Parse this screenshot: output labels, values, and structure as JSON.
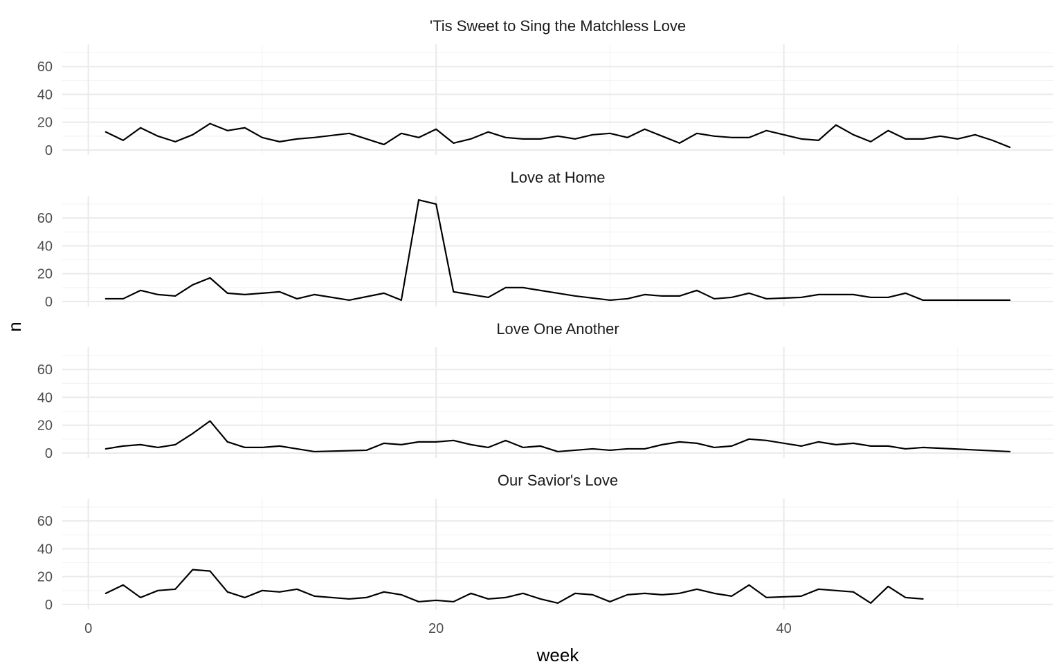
{
  "chart_data": {
    "type": "line",
    "facet": "rows",
    "xlabel": "week",
    "ylabel": "n",
    "xlim": [
      -1.5,
      55.5
    ],
    "ylim": [
      -3.5,
      76
    ],
    "x_ticks": [
      0,
      20,
      40
    ],
    "x_tick_labels": [
      "0",
      "20",
      "40"
    ],
    "y_ticks": [
      0,
      20,
      40,
      60
    ],
    "y_tick_labels": [
      "0",
      "20",
      "40",
      "60"
    ],
    "grid": true,
    "legend": "none",
    "line_color": "#000000",
    "panels": [
      {
        "title": "'Tis Sweet to Sing the Matchless Love",
        "x": [
          1,
          2,
          3,
          4,
          5,
          6,
          7,
          8,
          9,
          10,
          11,
          12,
          13,
          15,
          17,
          18,
          19,
          20,
          21,
          22,
          23,
          24,
          25,
          26,
          27,
          28,
          29,
          30,
          31,
          32,
          33,
          34,
          35,
          36,
          37,
          38,
          39,
          40,
          41,
          42,
          43,
          44,
          45,
          46,
          47,
          48,
          49,
          50,
          51,
          52,
          53
        ],
        "y": [
          13,
          7,
          16,
          10,
          6,
          11,
          19,
          14,
          16,
          9,
          6,
          8,
          9,
          12,
          4,
          12,
          9,
          15,
          5,
          8,
          13,
          9,
          8,
          8,
          10,
          8,
          11,
          12,
          9,
          15,
          10,
          5,
          12,
          10,
          9,
          9,
          14,
          11,
          8,
          7,
          18,
          11,
          6,
          14,
          8,
          8,
          10,
          8,
          11,
          7,
          2
        ]
      },
      {
        "title": "Love at Home",
        "x": [
          1,
          2,
          3,
          4,
          5,
          6,
          7,
          8,
          9,
          10,
          11,
          12,
          13,
          15,
          17,
          18,
          19,
          20,
          21,
          23,
          24,
          25,
          28,
          30,
          31,
          32,
          33,
          34,
          35,
          36,
          37,
          38,
          39,
          41,
          42,
          43,
          44,
          45,
          46,
          47,
          48,
          49,
          50,
          51,
          52,
          53
        ],
        "y": [
          2,
          2,
          8,
          5,
          4,
          12,
          17,
          6,
          5,
          6,
          7,
          2,
          5,
          1,
          6,
          1,
          73,
          70,
          7,
          3,
          10,
          10,
          4,
          1,
          2,
          5,
          4,
          4,
          8,
          2,
          3,
          6,
          2,
          3,
          5,
          5,
          5,
          3,
          3,
          6,
          1,
          1,
          1,
          1,
          1,
          1
        ]
      },
      {
        "title": "Love One Another",
        "x": [
          1,
          2,
          3,
          4,
          5,
          6,
          7,
          8,
          9,
          10,
          11,
          12,
          13,
          16,
          17,
          18,
          19,
          20,
          21,
          22,
          23,
          24,
          25,
          26,
          27,
          28,
          29,
          30,
          31,
          32,
          33,
          34,
          35,
          36,
          37,
          38,
          39,
          41,
          42,
          43,
          44,
          45,
          46,
          47,
          48,
          53
        ],
        "y": [
          3,
          5,
          6,
          4,
          6,
          14,
          23,
          8,
          4,
          4,
          5,
          3,
          1,
          2,
          7,
          6,
          8,
          8,
          9,
          6,
          4,
          9,
          4,
          5,
          1,
          2,
          3,
          2,
          3,
          3,
          6,
          8,
          7,
          4,
          5,
          10,
          9,
          5,
          8,
          6,
          7,
          5,
          5,
          3,
          4,
          1
        ]
      },
      {
        "title": "Our Savior's Love",
        "x": [
          1,
          2,
          3,
          4,
          5,
          6,
          7,
          8,
          9,
          10,
          11,
          12,
          13,
          15,
          16,
          17,
          18,
          19,
          20,
          21,
          22,
          23,
          24,
          25,
          26,
          27,
          28,
          29,
          30,
          31,
          32,
          33,
          34,
          35,
          36,
          37,
          38,
          39,
          41,
          42,
          44,
          45,
          46,
          47,
          48
        ],
        "y": [
          8,
          14,
          5,
          10,
          11,
          25,
          24,
          9,
          5,
          10,
          9,
          11,
          6,
          4,
          5,
          9,
          7,
          2,
          3,
          2,
          8,
          4,
          5,
          8,
          4,
          1,
          8,
          7,
          2,
          7,
          8,
          7,
          8,
          11,
          8,
          6,
          14,
          5,
          6,
          11,
          9,
          1,
          13,
          5,
          4
        ]
      }
    ]
  }
}
